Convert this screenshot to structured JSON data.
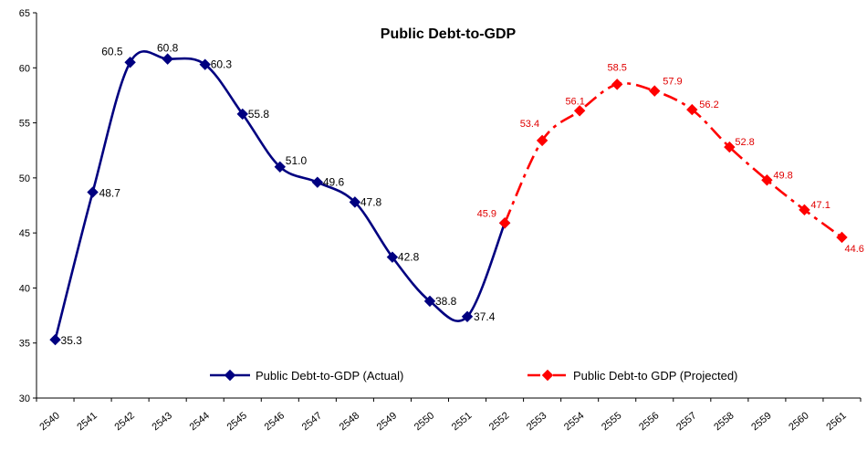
{
  "chart_data": {
    "type": "line",
    "title": "Public Debt-to-GDP",
    "xlabel": "",
    "ylabel": "",
    "ylim": [
      30,
      65
    ],
    "yticks": [
      30,
      35,
      40,
      45,
      50,
      55,
      60,
      65
    ],
    "categories": [
      "2540",
      "2541",
      "2542",
      "2543",
      "2544",
      "2545",
      "2546",
      "2547",
      "2548",
      "2549",
      "2550",
      "2551",
      "2552",
      "2553",
      "2554",
      "2555",
      "2556",
      "2557",
      "2558",
      "2559",
      "2560",
      "2561"
    ],
    "grid": false,
    "legend_position": "bottom-inside",
    "series": [
      {
        "name": "Public Debt-to-GDP (Actual)",
        "color": "#000080",
        "style": "solid",
        "marker": "diamond",
        "points": [
          {
            "x": "2540",
            "y": 35.3,
            "label": "35.3"
          },
          {
            "x": "2541",
            "y": 48.7,
            "label": "48.7"
          },
          {
            "x": "2542",
            "y": 60.5,
            "label": "60.5"
          },
          {
            "x": "2543",
            "y": 60.8,
            "label": "60.8"
          },
          {
            "x": "2544",
            "y": 60.3,
            "label": "60.3"
          },
          {
            "x": "2545",
            "y": 55.8,
            "label": "55.8"
          },
          {
            "x": "2546",
            "y": 51.0,
            "label": "51.0"
          },
          {
            "x": "2547",
            "y": 49.6,
            "label": "49.6"
          },
          {
            "x": "2548",
            "y": 47.8,
            "label": "47.8"
          },
          {
            "x": "2549",
            "y": 42.8,
            "label": "42.8"
          },
          {
            "x": "2550",
            "y": 38.8,
            "label": "38.8"
          },
          {
            "x": "2551",
            "y": 37.4,
            "label": "37.4"
          },
          {
            "x": "2552",
            "y": 45.9,
            "label": ""
          }
        ]
      },
      {
        "name": "Public Debt-to GDP (Projected)",
        "color": "#ff0000",
        "style": "dashed",
        "marker": "diamond",
        "points": [
          {
            "x": "2552",
            "y": 45.9,
            "label": "45.9"
          },
          {
            "x": "2553",
            "y": 53.4,
            "label": "53.4"
          },
          {
            "x": "2554",
            "y": 56.1,
            "label": "56.1"
          },
          {
            "x": "2555",
            "y": 58.5,
            "label": "58.5"
          },
          {
            "x": "2556",
            "y": 57.9,
            "label": "57.9"
          },
          {
            "x": "2557",
            "y": 56.2,
            "label": "56.2"
          },
          {
            "x": "2558",
            "y": 52.8,
            "label": "52.8"
          },
          {
            "x": "2559",
            "y": 49.8,
            "label": "49.8"
          },
          {
            "x": "2560",
            "y": 47.1,
            "label": "47.1"
          },
          {
            "x": "2561",
            "y": 44.6,
            "label": "44.6"
          }
        ]
      }
    ]
  }
}
